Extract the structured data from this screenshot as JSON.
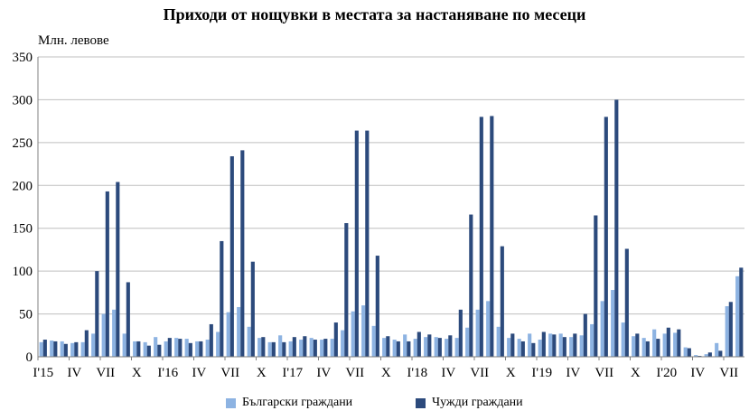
{
  "chart_data": {
    "type": "bar",
    "title": "Приходи от нощувки в местата за настаняване по месеци",
    "ylabel": "Млн. левове",
    "xlabel": "",
    "ylim": [
      0,
      350
    ],
    "yticks": [
      0,
      50,
      100,
      150,
      200,
      250,
      300,
      350
    ],
    "grid": true,
    "legend_position": "bottom",
    "colors": {
      "bulgarian": "#8db3e2",
      "foreign": "#2c4a7c",
      "grid": "#bfbfbf",
      "axis": "#808080"
    },
    "x_tick_labels": [
      {
        "index": 0,
        "label": "I'15"
      },
      {
        "index": 3,
        "label": "IV"
      },
      {
        "index": 6,
        "label": "VII"
      },
      {
        "index": 9,
        "label": "X"
      },
      {
        "index": 12,
        "label": "I'16"
      },
      {
        "index": 15,
        "label": "IV"
      },
      {
        "index": 18,
        "label": "VII"
      },
      {
        "index": 21,
        "label": "X"
      },
      {
        "index": 24,
        "label": "I'17"
      },
      {
        "index": 27,
        "label": "IV"
      },
      {
        "index": 30,
        "label": "VII"
      },
      {
        "index": 33,
        "label": "X"
      },
      {
        "index": 36,
        "label": "I'18"
      },
      {
        "index": 39,
        "label": "IV"
      },
      {
        "index": 42,
        "label": "VII"
      },
      {
        "index": 45,
        "label": "X"
      },
      {
        "index": 48,
        "label": "I'19"
      },
      {
        "index": 51,
        "label": "IV"
      },
      {
        "index": 54,
        "label": "VII"
      },
      {
        "index": 57,
        "label": "X"
      },
      {
        "index": 60,
        "label": "I'20"
      },
      {
        "index": 63,
        "label": "IV"
      },
      {
        "index": 66,
        "label": "VII"
      }
    ],
    "series": [
      {
        "name": "Български граждани",
        "key": "bulgarian",
        "values": [
          17,
          19,
          18,
          16,
          17,
          27,
          50,
          55,
          27,
          18,
          17,
          23,
          18,
          22,
          21,
          18,
          20,
          29,
          52,
          58,
          35,
          22,
          17,
          25,
          18,
          20,
          22,
          20,
          21,
          31,
          53,
          60,
          36,
          22,
          20,
          26,
          21,
          23,
          23,
          21,
          22,
          34,
          55,
          65,
          35,
          22,
          21,
          27,
          20,
          27,
          27,
          23,
          25,
          38,
          65,
          78,
          40,
          24,
          22,
          32,
          27,
          28,
          11,
          2,
          3,
          16,
          59,
          94
        ]
      },
      {
        "name": "Чужди граждани",
        "key": "foreign",
        "values": [
          20,
          18,
          15,
          17,
          31,
          100,
          193,
          204,
          87,
          18,
          13,
          14,
          22,
          21,
          16,
          18,
          38,
          135,
          234,
          241,
          111,
          23,
          17,
          17,
          23,
          24,
          20,
          21,
          40,
          156,
          264,
          264,
          118,
          24,
          18,
          18,
          29,
          26,
          22,
          25,
          55,
          166,
          280,
          281,
          129,
          27,
          18,
          16,
          29,
          26,
          23,
          27,
          50,
          165,
          280,
          300,
          126,
          27,
          18,
          21,
          34,
          32,
          10,
          1,
          5,
          7,
          64,
          104
        ]
      }
    ]
  }
}
